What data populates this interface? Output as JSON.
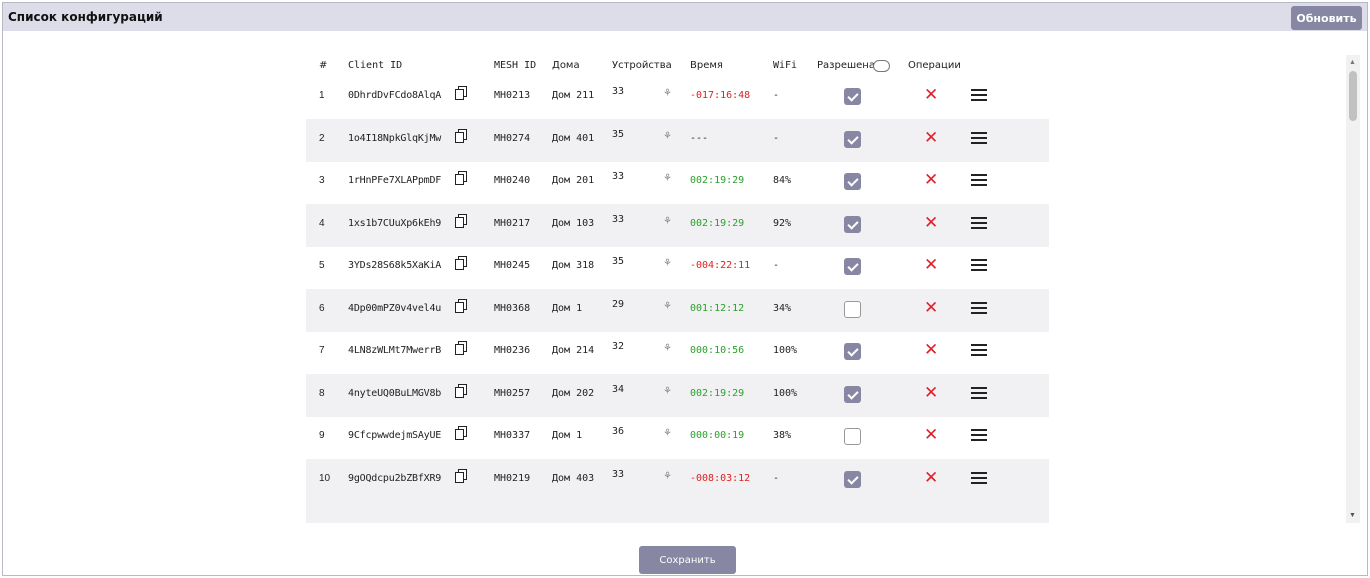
{
  "header": {
    "title": "Список конфигураций",
    "refresh_label": "Обновить"
  },
  "columns": {
    "num": "#",
    "client_id": "Client ID",
    "mesh_id": "MESH ID",
    "homes": "Дома",
    "devices": "Устройства",
    "time": "Время",
    "wifi": "WiFi",
    "allowed": "Разрешена",
    "operations": "Операции"
  },
  "icons": {
    "copy": "copy-icon",
    "network": "network-icon",
    "delete": "close-icon",
    "menu": "hamburger-menu-icon"
  },
  "colors": {
    "accent": "#8787a3",
    "time_positive": "#2aa12a",
    "time_negative": "#e02020",
    "delete": "#e0202a"
  },
  "rows": [
    {
      "num": "1",
      "client_id": "0DhrdDvFCdo8AlqA",
      "mesh_id": "MH0213",
      "home": "Дом 211",
      "devices": "33",
      "time": "-017:16:48",
      "time_state": "neg",
      "wifi": "-",
      "allowed": true
    },
    {
      "num": "2",
      "client_id": "1o4I18NpkGlqKjMw",
      "mesh_id": "MH0274",
      "home": "Дом 401",
      "devices": "35",
      "time": "---",
      "time_state": "none",
      "wifi": "-",
      "allowed": true
    },
    {
      "num": "3",
      "client_id": "1rHnPFe7XLAPpmDF",
      "mesh_id": "MH0240",
      "home": "Дом 201",
      "devices": "33",
      "time": "002:19:29",
      "time_state": "pos",
      "wifi": "84%",
      "allowed": true
    },
    {
      "num": "4",
      "client_id": "1xs1b7CUuXp6kEh9",
      "mesh_id": "MH0217",
      "home": "Дом 103",
      "devices": "33",
      "time": "002:19:29",
      "time_state": "pos",
      "wifi": "92%",
      "allowed": true
    },
    {
      "num": "5",
      "client_id": "3YDs28S68k5XaKiA",
      "mesh_id": "MH0245",
      "home": "Дом 318",
      "devices": "35",
      "time": "-004:22:11",
      "time_state": "neg",
      "wifi": "-",
      "allowed": true
    },
    {
      "num": "6",
      "client_id": "4Dp00mPZ0v4vel4u",
      "mesh_id": "MH0368",
      "home": "Дом 1",
      "devices": "29",
      "time": "001:12:12",
      "time_state": "pos",
      "wifi": "34%",
      "allowed": false
    },
    {
      "num": "7",
      "client_id": "4LN8zWLMt7MwerrB",
      "mesh_id": "MH0236",
      "home": "Дом 214",
      "devices": "32",
      "time": "000:10:56",
      "time_state": "pos",
      "wifi": "100%",
      "allowed": true
    },
    {
      "num": "8",
      "client_id": "4nyteUQ0BuLMGV8b",
      "mesh_id": "MH0257",
      "home": "Дом 202",
      "devices": "34",
      "time": "002:19:29",
      "time_state": "pos",
      "wifi": "100%",
      "allowed": true
    },
    {
      "num": "9",
      "client_id": "9CfcpwwdejmSAyUE",
      "mesh_id": "MH0337",
      "home": "Дом 1",
      "devices": "36",
      "time": "000:00:19",
      "time_state": "pos",
      "wifi": "38%",
      "allowed": false
    },
    {
      "num": "10",
      "client_id": "9gOQdcpu2bZBfXR9",
      "mesh_id": "MH0219",
      "home": "Дом 403",
      "devices": "33",
      "time": "-008:03:12",
      "time_state": "neg",
      "wifi": "-",
      "allowed": true
    }
  ],
  "footer": {
    "save_label": "Сохранить"
  }
}
